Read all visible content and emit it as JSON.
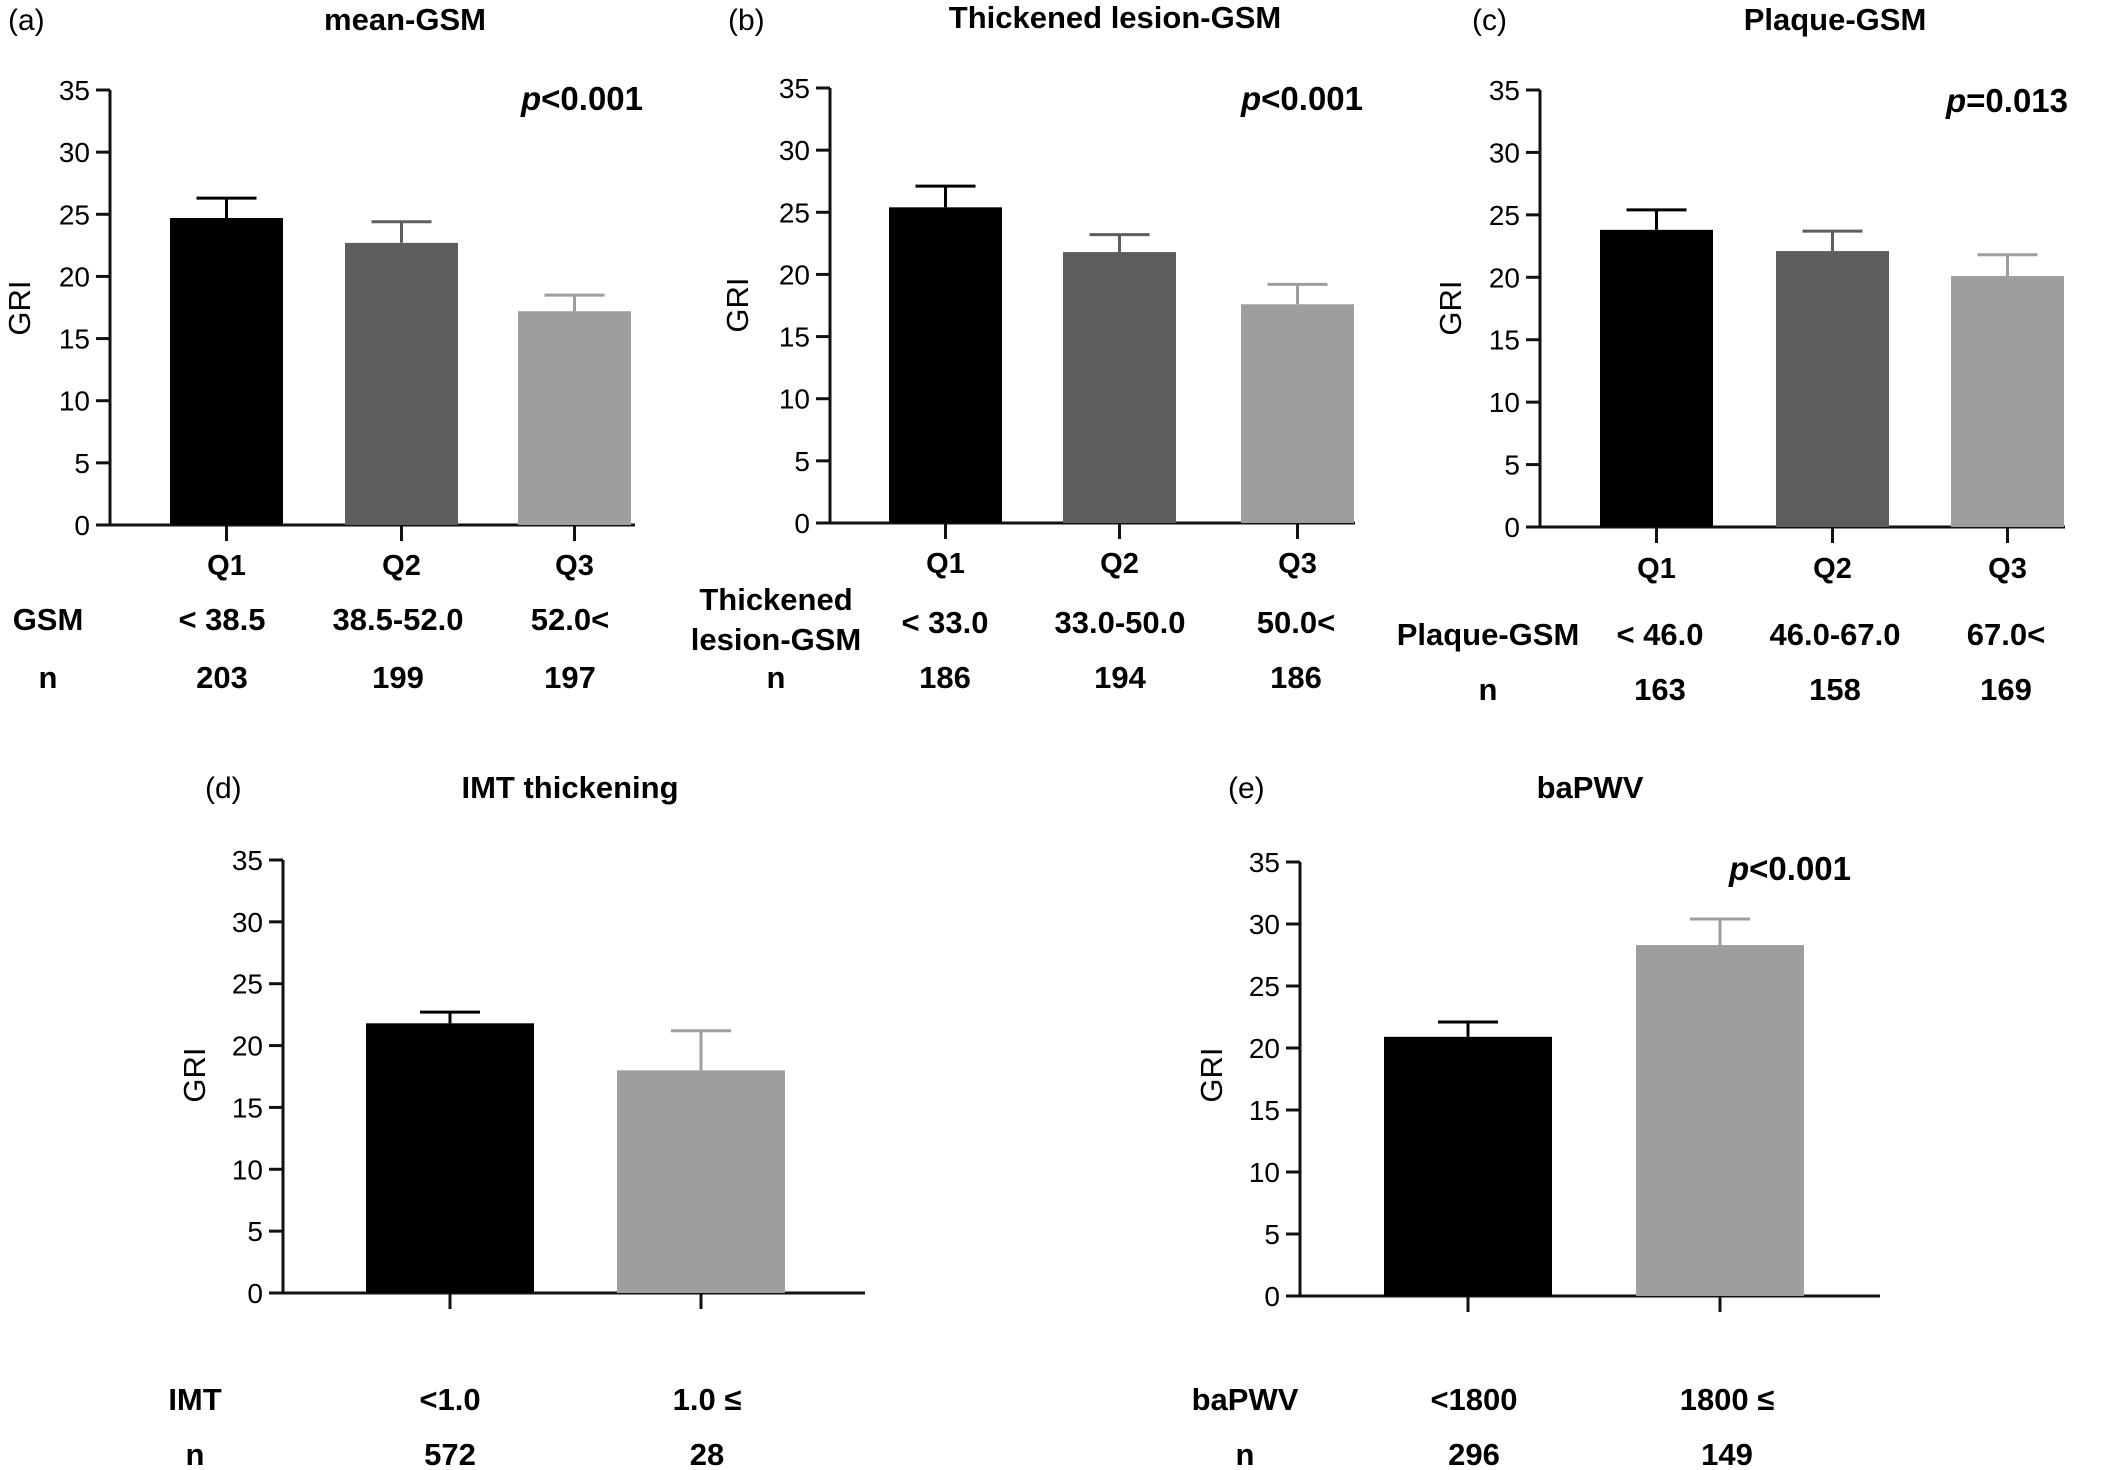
{
  "colors": {
    "q1": "#000000",
    "q2": "#5e5e5e",
    "q3": "#9e9e9e",
    "axis": "#111111"
  },
  "chart_data": [
    {
      "type": "bar",
      "panel_label": "(a)",
      "title": "mean-GSM",
      "ylabel": "GRI",
      "ylim": [
        0,
        35
      ],
      "yticks": [
        "0",
        "5",
        "10",
        "15",
        "20",
        "25",
        "30",
        "35"
      ],
      "categories": [
        "Q1",
        "Q2",
        "Q3"
      ],
      "values": [
        24.7,
        22.7,
        17.2
      ],
      "errors": [
        1.6,
        1.7,
        1.3
      ],
      "bar_colors": [
        "#000000",
        "#5e5e5e",
        "#9e9e9e"
      ],
      "p_prefix": "p",
      "p_value": "<0.001",
      "group_label": "GSM",
      "group_label_2": "",
      "ranges": [
        "< 38.5",
        "38.5-52.0",
        "52.0<"
      ],
      "n_label": "n",
      "n_values": [
        "203",
        "199",
        "197"
      ]
    },
    {
      "type": "bar",
      "panel_label": "(b)",
      "title": "Thickened lesion-GSM",
      "ylabel": "GRI",
      "ylim": [
        0,
        35
      ],
      "yticks": [
        "0",
        "5",
        "10",
        "15",
        "20",
        "25",
        "30",
        "35"
      ],
      "categories": [
        "Q1",
        "Q2",
        "Q3"
      ],
      "values": [
        25.4,
        21.8,
        17.6
      ],
      "errors": [
        1.7,
        1.4,
        1.6
      ],
      "bar_colors": [
        "#000000",
        "#5e5e5e",
        "#9e9e9e"
      ],
      "p_prefix": "p",
      "p_value": "<0.001",
      "group_label": "Thickened",
      "group_label_2": "lesion-GSM",
      "ranges": [
        "< 33.0",
        "33.0-50.0",
        "50.0<"
      ],
      "n_label": "n",
      "n_values": [
        "186",
        "194",
        "186"
      ]
    },
    {
      "type": "bar",
      "panel_label": "(c)",
      "title": "Plaque-GSM",
      "ylabel": "GRI",
      "ylim": [
        0,
        35
      ],
      "yticks": [
        "0",
        "5",
        "10",
        "15",
        "20",
        "25",
        "30",
        "35"
      ],
      "categories": [
        "Q1",
        "Q2",
        "Q3"
      ],
      "values": [
        23.8,
        22.1,
        20.1
      ],
      "errors": [
        1.6,
        1.6,
        1.7
      ],
      "bar_colors": [
        "#000000",
        "#5e5e5e",
        "#9e9e9e"
      ],
      "p_prefix": "p",
      "p_value": "=0.013",
      "group_label": "Plaque-GSM",
      "group_label_2": "",
      "ranges": [
        "< 46.0",
        "46.0-67.0",
        "67.0<"
      ],
      "n_label": "n",
      "n_values": [
        "163",
        "158",
        "169"
      ]
    },
    {
      "type": "bar",
      "panel_label": "(d)",
      "title": "IMT thickening",
      "ylabel": "GRI",
      "ylim": [
        0,
        35
      ],
      "yticks": [
        "0",
        "5",
        "10",
        "15",
        "20",
        "25",
        "30",
        "35"
      ],
      "categories": [
        "",
        ""
      ],
      "values": [
        21.8,
        18.0
      ],
      "errors": [
        0.9,
        3.2
      ],
      "bar_colors": [
        "#000000",
        "#9e9e9e"
      ],
      "p_prefix": "",
      "p_value": "",
      "group_label": "IMT",
      "group_label_2": "",
      "ranges": [
        "<1.0",
        "1.0 ≤"
      ],
      "n_label": "n",
      "n_values": [
        "572",
        "28"
      ]
    },
    {
      "type": "bar",
      "panel_label": "(e)",
      "title": "baPWV",
      "ylabel": "GRI",
      "ylim": [
        0,
        35
      ],
      "yticks": [
        "0",
        "5",
        "10",
        "15",
        "20",
        "25",
        "30",
        "35"
      ],
      "categories": [
        "",
        ""
      ],
      "values": [
        20.9,
        28.3
      ],
      "errors": [
        1.2,
        2.1
      ],
      "bar_colors": [
        "#000000",
        "#9e9e9e"
      ],
      "p_prefix": "p",
      "p_value": "<0.001",
      "group_label": "baPWV",
      "group_label_2": "",
      "ranges": [
        "<1800",
        "1800 ≤"
      ],
      "n_label": "n",
      "n_values": [
        "296",
        "149"
      ]
    }
  ]
}
